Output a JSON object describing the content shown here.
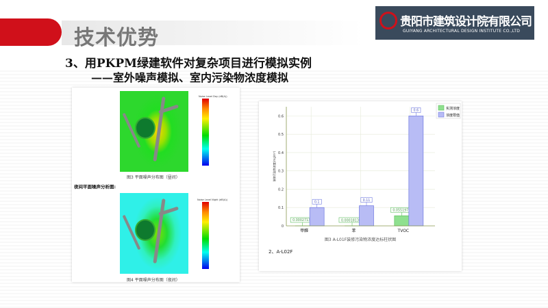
{
  "header": {
    "title": "技术优势"
  },
  "logo": {
    "name_cn": "贵阳市建筑设计院有限公司",
    "name_en": "GUIYANG ARCHITECTURAL DESIGN INSTITUTE CO.,LTD",
    "accent": "#d0101a"
  },
  "subtitle": {
    "line1": "3、用PKPM绿建软件对复杂项目进行模拟实例",
    "line2": "——室外噪声模拟、室内污染物浓度模拟"
  },
  "noise": {
    "day_scale_title": "Noise Level Day (dB(A))",
    "day_caption": "图3 平面噪声分布图（昼间）",
    "night_heading": "夜间平面噪声分析图:",
    "night_scale_title": "Noise Level Night (dB(A))",
    "night_caption": "图4 平面噪声分布图（夜间）"
  },
  "chart_data": {
    "type": "bar",
    "categories": [
      "甲醛",
      "苯",
      "TVOC"
    ],
    "series": [
      {
        "name": "实测浓度",
        "values": [
          0.00027131,
          0.000181304,
          0.0551977
        ],
        "labels": [
          "0.00027131",
          "0.000181304",
          "0.0551977"
        ],
        "color": "#8fe08f"
      },
      {
        "name": "浓度限值",
        "values": [
          0.1,
          0.11,
          0.6
        ],
        "labels": [
          "0.1",
          "0.11",
          "0.6"
        ],
        "color": "#b8bcf5"
      }
    ],
    "yticks": [
      "0",
      "0.1",
      "0.2",
      "0.3",
      "0.4",
      "0.5",
      "0.6"
    ],
    "ylim": [
      0,
      0.65
    ],
    "ylabel": "装修污染物浓度(mg/m³)",
    "grid": true,
    "legend": "top-right",
    "caption": "图3 A-L01F装修污染物浓度达标柱状图"
  },
  "footer_note": "2、A-L02F"
}
